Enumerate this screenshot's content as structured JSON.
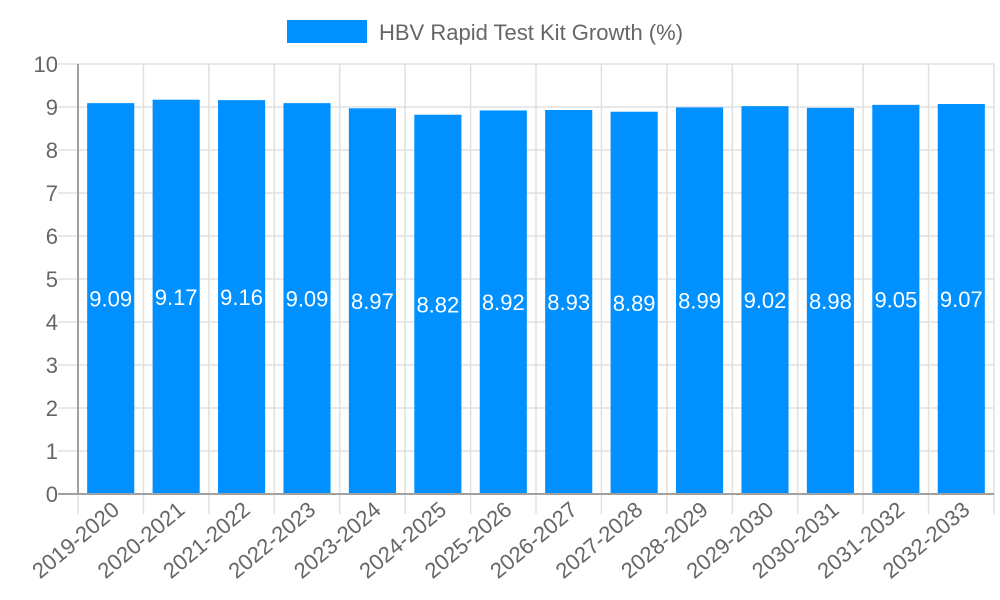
{
  "chart_data": {
    "type": "bar",
    "title": "",
    "legend": [
      {
        "label": "HBV Rapid Test Kit Growth (%)",
        "color": "#0090ff"
      }
    ],
    "legend_position": "top",
    "xlabel": "",
    "ylabel": "",
    "ylim": [
      0,
      10
    ],
    "yticks": [
      0,
      1,
      2,
      3,
      4,
      5,
      6,
      7,
      8,
      9,
      10
    ],
    "grid": true,
    "categories": [
      "2019-2020",
      "2020-2021",
      "2021-2022",
      "2022-2023",
      "2023-2024",
      "2024-2025",
      "2025-2026",
      "2026-2027",
      "2027-2028",
      "2028-2029",
      "2029-2030",
      "2030-2031",
      "2031-2032",
      "2032-2033"
    ],
    "series": [
      {
        "name": "HBV Rapid Test Kit Growth (%)",
        "color": "#0090ff",
        "values": [
          9.09,
          9.17,
          9.16,
          9.09,
          8.97,
          8.82,
          8.92,
          8.93,
          8.89,
          8.99,
          9.02,
          8.98,
          9.05,
          9.07
        ],
        "data_labels": [
          "9.09",
          "9.17",
          "9.16",
          "9.09",
          "8.97",
          "8.82",
          "8.92",
          "8.93",
          "8.89",
          "8.99",
          "9.02",
          "8.98",
          "9.05",
          "9.07"
        ]
      }
    ]
  },
  "colors": {
    "bar": "#0090ff",
    "grid": "#e0e0e0",
    "axis": "#a0a0a0",
    "text": "#666666",
    "bar_label": "#ffffff"
  }
}
